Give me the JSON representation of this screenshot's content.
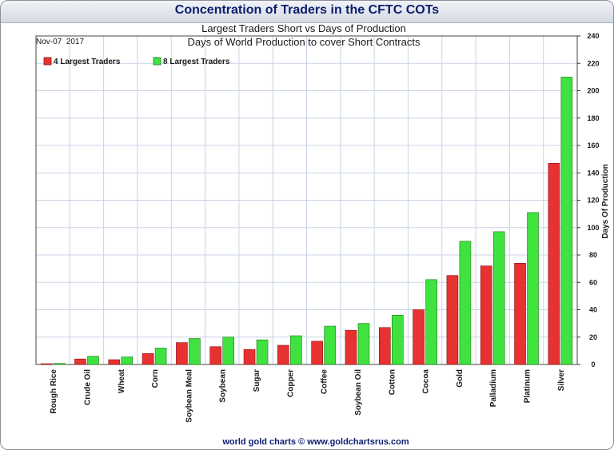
{
  "window_title": "Concentration of Traders in the CFTC COTs",
  "footer": "world gold charts © www.goldchartsrus.com",
  "colors": {
    "series1": "#e83232",
    "series2": "#3fe23f",
    "title": "#0b1e6e",
    "grid": "#c9d3e6",
    "plot_bg": "#ffffff"
  },
  "chart_data": {
    "type": "bar",
    "title": "Largest Traders Short vs Days of Production",
    "subtitle": "Days of World Production to cover Short Contracts",
    "date_label": "Nov-07  2017",
    "xlabel": "",
    "ylabel": "Days Of Production",
    "ylim": [
      0,
      240
    ],
    "yticks": [
      0,
      20,
      40,
      60,
      80,
      100,
      120,
      140,
      160,
      180,
      200,
      220,
      240
    ],
    "grid": true,
    "legend_position": "top-left",
    "categories": [
      "Rough Rice",
      "Crude Oil",
      "Wheat",
      "Corn",
      "Soybean Meal",
      "Soybean",
      "Sugar",
      "Copper",
      "Coffee",
      "Soybean Oil",
      "Cotton",
      "Cocoa",
      "Gold",
      "Palladium",
      "Platinum",
      "Silver"
    ],
    "series": [
      {
        "name": "4 Largest Traders",
        "values": [
          0.5,
          4,
          3.5,
          8,
          16,
          13,
          11,
          14,
          17,
          25,
          27,
          40,
          65,
          72,
          74,
          147
        ]
      },
      {
        "name": "8 Largest Traders",
        "values": [
          0.8,
          6,
          5.5,
          12,
          19,
          20,
          18,
          21,
          28,
          30,
          36,
          62,
          90,
          97,
          111,
          210
        ]
      }
    ]
  }
}
